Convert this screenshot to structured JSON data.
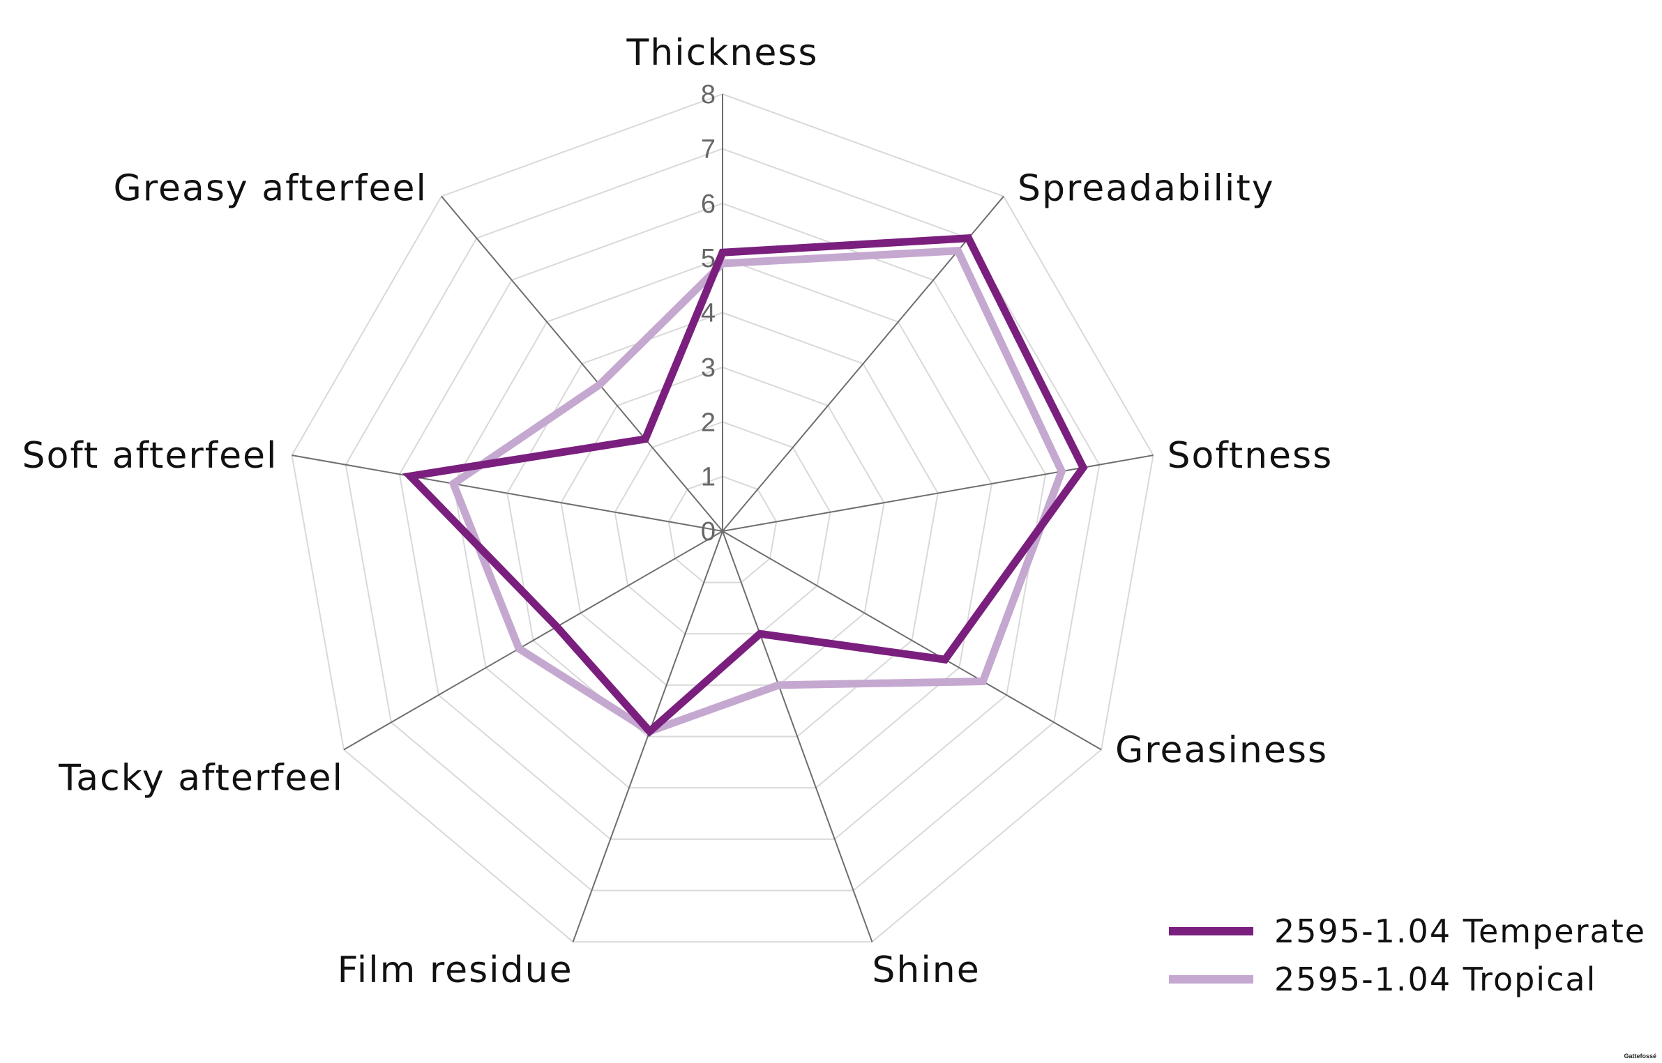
{
  "chart_data": {
    "type": "radar",
    "axes": [
      "Thickness",
      "Spreadability",
      "Softness",
      "Greasiness",
      "Shine",
      "Film residue",
      "Tacky afterfeel",
      "Soft afterfeel",
      "Greasy afterfeel"
    ],
    "ticks": [
      "0",
      "1",
      "2",
      "3",
      "4",
      "5",
      "6",
      "7",
      "8"
    ],
    "rmin": 0,
    "rmax": 8,
    "grid": true,
    "legend_position": "bottom-right",
    "series": [
      {
        "name": "2595-1.04 Temperate",
        "color": "#7a1f7e",
        "values": [
          5.1,
          7.0,
          6.7,
          4.7,
          2.0,
          3.9,
          3.5,
          5.8,
          2.2
        ]
      },
      {
        "name": "2595-1.04 Tropical",
        "color": "#c5a8d0",
        "values": [
          4.9,
          6.7,
          6.3,
          5.5,
          3.0,
          3.9,
          4.3,
          5.0,
          3.5
        ]
      }
    ]
  },
  "watermark": "Gattefossé"
}
